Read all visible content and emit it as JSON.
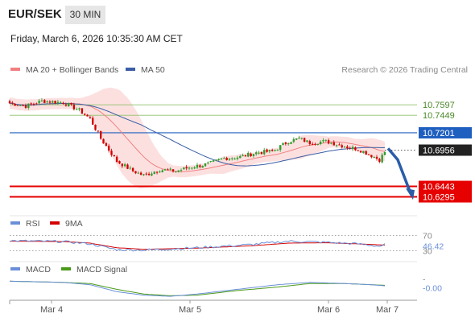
{
  "header": {
    "symbol": "EUR/SEK",
    "timeframe": "30 MIN",
    "datetime": "Friday, March 6, 2026 10:35:30 AM CET"
  },
  "legend": {
    "ma20_bb": "MA 20 + Bollinger Bands",
    "ma50": "MA 50",
    "source": "Research © 2026 Trading Central"
  },
  "colors": {
    "bull": "#2e9e2e",
    "bear": "#d40000",
    "ma20": "#f08080",
    "ma50": "#3b5ea6",
    "band_fill": "#fbd5d5",
    "level_green": "#8fbf6a",
    "level_blue": "#1f5fbf",
    "level_red": "#e60000",
    "arrow": "#2a5ca8",
    "rsi": "#6a8fd8",
    "rsi_ma": "#d40000",
    "macd": "#6a8fd8",
    "macd_signal": "#4a9a1a"
  },
  "chart_data": [
    {
      "type": "candlestick",
      "name_label": "EUR/SEK",
      "x_ticks": [
        "Mar 4",
        "Mar 5",
        "Mar 6",
        "Mar 7"
      ],
      "ylim": [
        10.621,
        10.785
      ],
      "levels": [
        {
          "value": 10.7597,
          "label": "10.7597",
          "style": "green"
        },
        {
          "value": 10.7449,
          "label": "10.7449",
          "style": "green"
        },
        {
          "value": 10.7201,
          "label": "10.7201",
          "style": "blue"
        },
        {
          "value": 10.6956,
          "label": "10.6956",
          "style": "current"
        },
        {
          "value": 10.6443,
          "label": "10.6443",
          "style": "red"
        },
        {
          "value": 10.6295,
          "label": "10.6295",
          "style": "red"
        }
      ],
      "ohlc_start_index": 0,
      "ohlc_close_anchors": [
        [
          0,
          10.762
        ],
        [
          6,
          10.758
        ],
        [
          12,
          10.765
        ],
        [
          20,
          10.763
        ],
        [
          26,
          10.752
        ],
        [
          30,
          10.74
        ],
        [
          34,
          10.712
        ],
        [
          40,
          10.68
        ],
        [
          46,
          10.666
        ],
        [
          50,
          10.66
        ],
        [
          56,
          10.668
        ],
        [
          62,
          10.666
        ],
        [
          68,
          10.672
        ],
        [
          74,
          10.676
        ],
        [
          80,
          10.684
        ],
        [
          86,
          10.686
        ],
        [
          92,
          10.692
        ],
        [
          98,
          10.694
        ],
        [
          104,
          10.708
        ],
        [
          108,
          10.712
        ],
        [
          112,
          10.706
        ],
        [
          118,
          10.708
        ],
        [
          122,
          10.704
        ],
        [
          126,
          10.7
        ],
        [
          130,
          10.697
        ],
        [
          134,
          10.69
        ],
        [
          138,
          10.682
        ],
        [
          140,
          10.693
        ]
      ],
      "forecast_arrow": {
        "from": 10.698,
        "to": 10.63
      }
    },
    {
      "type": "line",
      "legend": [
        "RSI",
        "9MA"
      ],
      "ylim": [
        25,
        75
      ],
      "ticks": [
        {
          "value": 70,
          "label": "70"
        },
        {
          "value": 30,
          "label": "30"
        }
      ],
      "current_label": "46.42",
      "rsi_anchors": [
        [
          0,
          56
        ],
        [
          20,
          54
        ],
        [
          30,
          48
        ],
        [
          40,
          33
        ],
        [
          50,
          32
        ],
        [
          70,
          38
        ],
        [
          90,
          46
        ],
        [
          104,
          55
        ],
        [
          118,
          52
        ],
        [
          130,
          48
        ],
        [
          138,
          42
        ],
        [
          140,
          46
        ]
      ],
      "ma_anchors": [
        [
          0,
          55
        ],
        [
          20,
          54
        ],
        [
          30,
          50
        ],
        [
          40,
          38
        ],
        [
          50,
          34
        ],
        [
          70,
          37
        ],
        [
          90,
          43
        ],
        [
          104,
          50
        ],
        [
          118,
          51
        ],
        [
          130,
          48
        ],
        [
          140,
          45
        ]
      ]
    },
    {
      "type": "line",
      "legend": [
        "MACD",
        "MACD Signal"
      ],
      "ylim": [
        -0.012,
        0.006
      ],
      "ticks": [
        {
          "value": 0,
          "label": "-"
        }
      ],
      "current_label": "-0.00",
      "macd_anchors": [
        [
          0,
          0.003
        ],
        [
          20,
          0.002
        ],
        [
          30,
          0.0
        ],
        [
          40,
          -0.006
        ],
        [
          50,
          -0.009
        ],
        [
          60,
          -0.01
        ],
        [
          70,
          -0.008
        ],
        [
          85,
          -0.004
        ],
        [
          100,
          0.0
        ],
        [
          112,
          0.002
        ],
        [
          125,
          0.001
        ],
        [
          135,
          0.0
        ],
        [
          140,
          -0.001
        ]
      ],
      "signal_anchors": [
        [
          0,
          0.003
        ],
        [
          20,
          0.002
        ],
        [
          30,
          0.001
        ],
        [
          40,
          -0.004
        ],
        [
          50,
          -0.008
        ],
        [
          60,
          -0.0095
        ],
        [
          70,
          -0.009
        ],
        [
          85,
          -0.005
        ],
        [
          100,
          -0.002
        ],
        [
          112,
          0.001
        ],
        [
          125,
          0.001
        ],
        [
          135,
          0.0
        ],
        [
          140,
          -0.0005
        ]
      ]
    }
  ]
}
